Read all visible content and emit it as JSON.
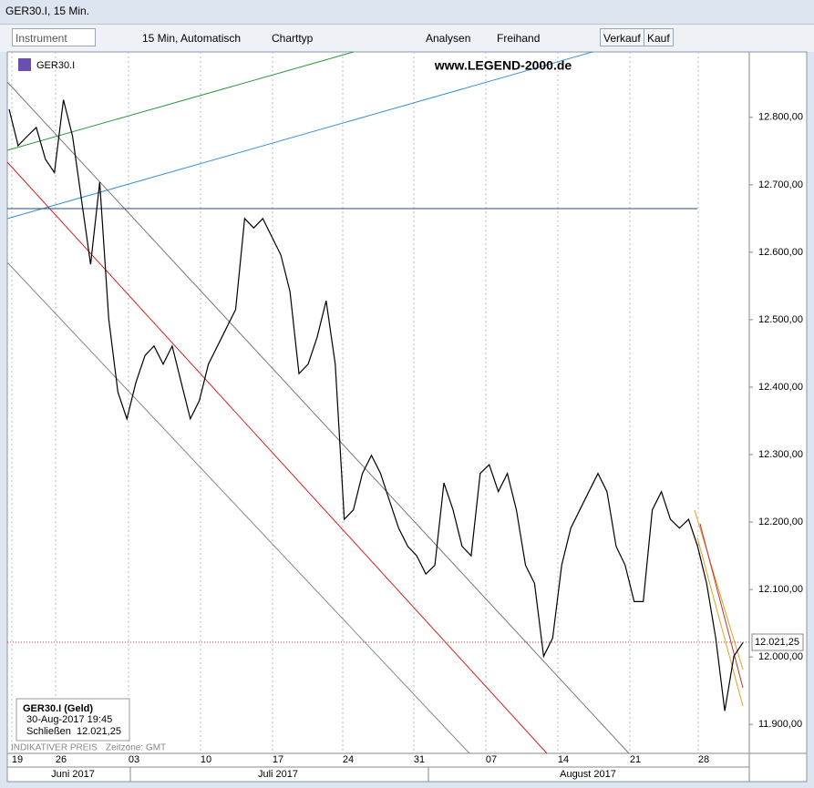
{
  "window": {
    "title": "GER30.I, 15 Min.",
    "toolbar": {
      "instrument": "Instrument",
      "interval": "15 Min,  Automatisch",
      "chart_type": "Charttyp",
      "analyses": "Analysen",
      "freehand": "Freihand",
      "sell": "Verkauf",
      "buy": "Kauf"
    }
  },
  "chart_data": {
    "type": "line",
    "watermark": "www.LEGEND-2000.de",
    "series": [
      {
        "name": "GER30.I",
        "color": "#000000",
        "values": [
          12812,
          12758,
          12772,
          12785,
          12738,
          12718,
          12826,
          12772,
          12677,
          12582,
          12704,
          12501,
          12393,
          12353,
          12407,
          12447,
          12461,
          12434,
          12461,
          12407,
          12353,
          12380,
          12434,
          12461,
          12488,
          12515,
          12650,
          12636,
          12650,
          12623,
          12596,
          12542,
          12420,
          12434,
          12474,
          12528,
          12434,
          12204,
          12218,
          12272,
          12299,
          12272,
          12231,
          12191,
          12164,
          12150,
          12123,
          12136,
          12258,
          12218,
          12164,
          12150,
          12272,
          12285,
          12245,
          12272,
          12218,
          12136,
          12109,
          12001,
          12028,
          12136,
          12191,
          12218,
          12245,
          12272,
          12245,
          12164,
          12136,
          12082,
          12082,
          12218,
          12245,
          12204,
          12191,
          12204,
          12164,
          12109,
          12028,
          11920,
          12001,
          12021.25
        ]
      }
    ],
    "last_price_label": "12.021,25",
    "ylim": [
      11857,
      12897
    ],
    "yticks": [
      {
        "value": 11900,
        "label": "11.900,00"
      },
      {
        "value": 12000,
        "label": "12.000,00"
      },
      {
        "value": 12100,
        "label": "12.100,00"
      },
      {
        "value": 12200,
        "label": "12.200,00"
      },
      {
        "value": 12300,
        "label": "12.300,00"
      },
      {
        "value": 12400,
        "label": "12.400,00"
      },
      {
        "value": 12500,
        "label": "12.500,00"
      },
      {
        "value": 12600,
        "label": "12.600,00"
      },
      {
        "value": 12700,
        "label": "12.700,00"
      },
      {
        "value": 12800,
        "label": "12.800,00"
      }
    ],
    "xticks": [
      "19",
      "26",
      "03",
      "10",
      "17",
      "24",
      "31",
      "07",
      "14",
      "21",
      "28"
    ],
    "months": [
      "Juni 2017",
      "Juli 2017",
      "August 2017"
    ],
    "grid": true,
    "info": {
      "title": "GER30.I (Geld)",
      "time": "30-Aug-2017 19:45",
      "close_name": "Schließen",
      "close_label": "12.021,25"
    },
    "footer": {
      "price_type": "INDIKATIVER PREIS",
      "timezone": "Zeitzone: GMT"
    }
  }
}
